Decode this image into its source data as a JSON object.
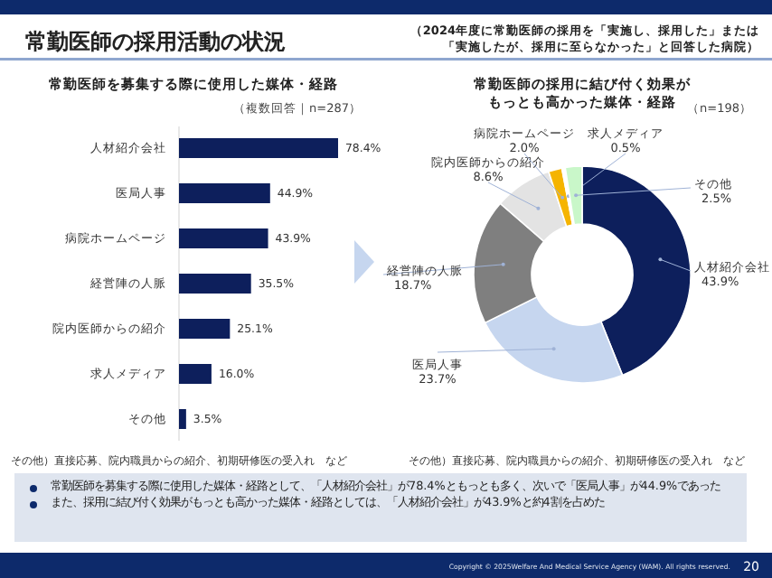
{
  "chart_data": [
    {
      "type": "bar",
      "orientation": "horizontal",
      "title": "常勤医師を募集する際に使用した媒体・経路",
      "subtitle": "（複数回答｜n=287）",
      "categories": [
        "人材紹介会社",
        "医局人事",
        "病院ホームページ",
        "経営陣の人脈",
        "院内医師からの紹介",
        "求人メディア",
        "その他"
      ],
      "values": [
        78.4,
        44.9,
        43.9,
        35.5,
        25.1,
        16.0,
        3.5
      ],
      "value_labels": [
        "78.4%",
        "44.9%",
        "43.9%",
        "35.5%",
        "25.1%",
        "16.0%",
        "3.5%"
      ],
      "color": "#0d1f5c",
      "annotations": [
        "常勤医師の採用活動の状況",
        "（2024年度に常勤医師の採用を「実施し、採用した」または",
        "「実施したが、採用に至らなかった」と回答した病院）",
        "その他）直接応募、院内職員からの紹介、初期研修医の受入れ　など",
        "常勤医師を募集する際に使用した媒体・経路として、「人材紹介会社」が78.4%ともっとも多く、次いで「医局人事」が44.9%であった",
        "また、採用に結び付く効果がもっとも高かった媒体・経路としては、「人材紹介会社」が43.9%と約4割を占めた",
        "Copyright © 2025Welfare And Medical Service Agency (WAM). All rights reserved.",
        "20"
      ]
    },
    {
      "type": "donut",
      "title": "常勤医師の採用に結び付く効果がもっとも高かった媒体・経路",
      "subtitle": "（n=198）",
      "categories": [
        "人材紹介会社",
        "医局人事",
        "経営陣の人脈",
        "院内医師からの紹介",
        "病院ホームページ",
        "求人メディア",
        "その他"
      ],
      "values": [
        43.9,
        23.7,
        18.7,
        8.6,
        2.0,
        0.5,
        2.5
      ],
      "value_labels": [
        "43.9%",
        "23.7%",
        "18.7%",
        "8.6%",
        "2.0%",
        "0.5%",
        "2.5%"
      ],
      "colors": [
        "#0d1f5c",
        "#c6d6ef",
        "#7f7f7f",
        "#e3e3e3",
        "#f5b400",
        "#ffffff",
        "#c9f7c9"
      ],
      "annotations": [
        "その他）直接応募、院内職員からの紹介、初期研修医の受入れ　など"
      ]
    }
  ]
}
